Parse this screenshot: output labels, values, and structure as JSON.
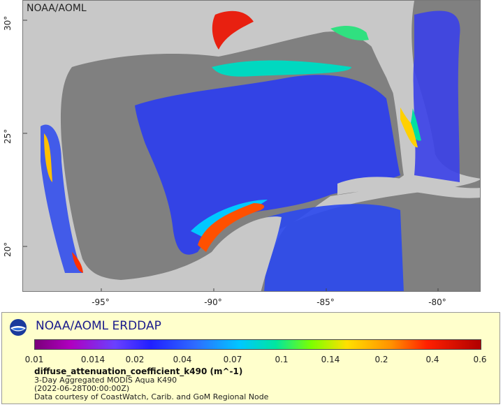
{
  "map": {
    "corner_label": "NOAA/AOML",
    "lat_ticks": [
      "30°",
      "25°",
      "20°"
    ],
    "lon_ticks": [
      "-95°",
      "-90°",
      "-85°",
      "-80°"
    ]
  },
  "legend": {
    "title": "NOAA/AOML ERDDAP",
    "colorbar_labels": [
      "0.01",
      "0.014",
      "0.02",
      "0.04",
      "0.07",
      "0.1",
      "0.14",
      "0.2",
      "0.4",
      "0.6"
    ],
    "variable": "diffuse_attenuation_coefficient_k490 (m^-1)",
    "line1": "3-Day Aggregated MODIS Aqua K490",
    "line2": "(2022-06-28T00:00:00Z)",
    "line3": "Data courtesy of CoastWatch, Carib. and GoM Regional Node"
  },
  "colors": {
    "land": "#c8c8c8",
    "missing_water": "#808080",
    "low": "#2a3cf0",
    "mid": "#00c8ff",
    "high": "#ff3000"
  }
}
